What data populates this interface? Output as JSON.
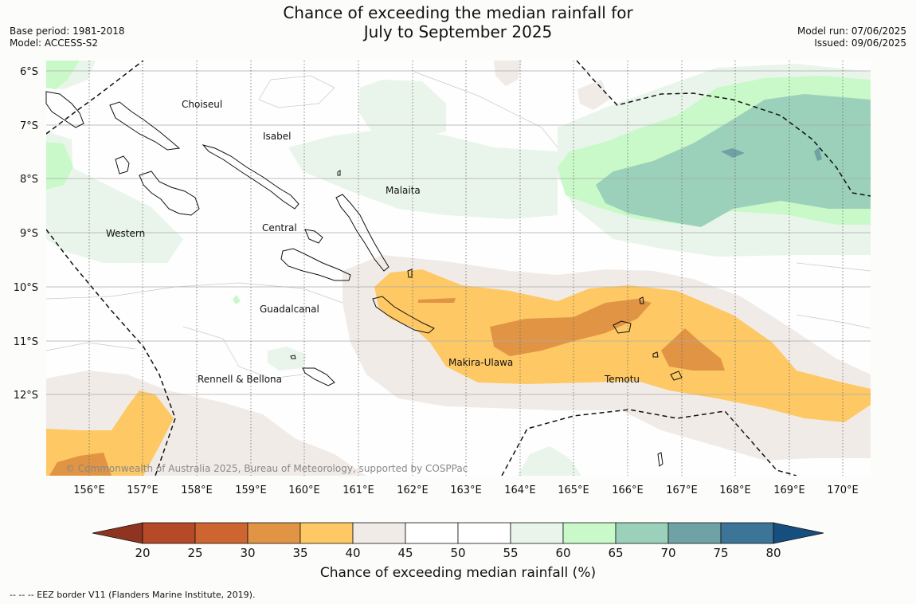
{
  "header": {
    "title_line1": "Chance of exceeding the median rainfall for",
    "title_line2": "July to September 2025",
    "base_period": "Base period: 1981-2018",
    "model": "Model: ACCESS-S2",
    "model_run": "Model run: 07/06/2025",
    "issued": "Issued: 09/06/2025"
  },
  "map": {
    "lat_labels": [
      "6°S",
      "7°S",
      "8°S",
      "9°S",
      "10°S",
      "11°S",
      "12°S"
    ],
    "lon_labels": [
      "156°E",
      "157°E",
      "158°E",
      "159°E",
      "160°E",
      "161°E",
      "162°E",
      "163°E",
      "164°E",
      "165°E",
      "166°E",
      "167°E",
      "168°E",
      "169°E",
      "170°E"
    ],
    "regions": [
      "Choiseul",
      "Isabel",
      "Malaita",
      "Western",
      "Central",
      "Guadalcanal",
      "Makira-Ulawa",
      "Rennell & Bellona",
      "Temotu"
    ],
    "copyright": "© Commonwealth of Australia 2025, Bureau of Meteorology, supported by COSPPac"
  },
  "colorbar": {
    "ticks": [
      "20",
      "25",
      "30",
      "35",
      "40",
      "45",
      "50",
      "55",
      "60",
      "65",
      "70",
      "75",
      "80"
    ],
    "colors": [
      "#b54a28",
      "#cc6530",
      "#e09444",
      "#fec964",
      "#f1ebe8",
      "#ffffff",
      "#ffffff",
      "#e9f5ea",
      "#c9f9c9",
      "#9bd1ba",
      "#6fa2a4",
      "#3c7598"
    ],
    "low_color": "#8f3420",
    "high_color": "#174e80",
    "title": "Chance of exceeding median rainfall (%)"
  },
  "footer": {
    "eez_note": "-- -- -- EEZ border V11 (Flanders Marine Institute, 2019)."
  }
}
